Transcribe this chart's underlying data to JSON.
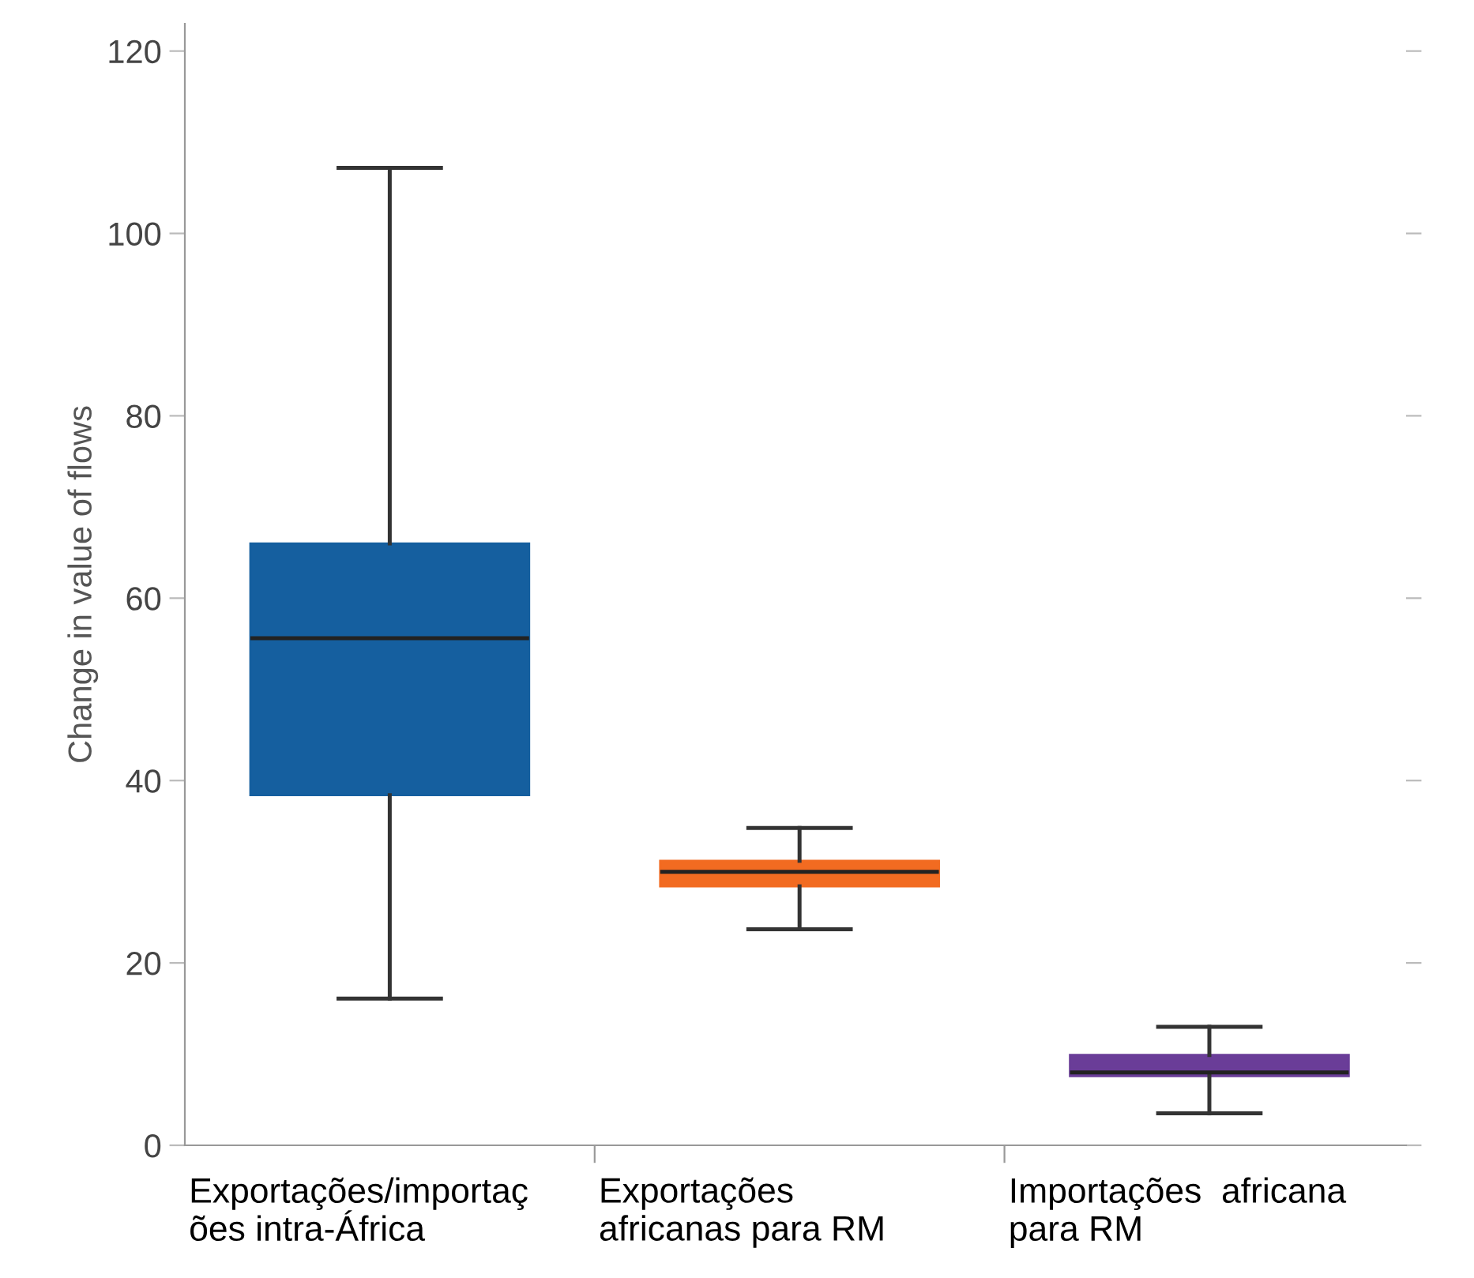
{
  "chart_data": {
    "type": "box",
    "ylabel": "Change in value of flows",
    "categories": [
      "Exportações/importaç\nões intra-África",
      "Exportações\nafricanas para RM",
      "Importações  africana\npara RM"
    ],
    "colors": [
      "#155f9f",
      "#f26b21",
      "#6a3d98"
    ],
    "boxes": [
      {
        "low": 16.1,
        "q1": 38.4,
        "median": 55.6,
        "q3": 66.0,
        "high": 107.2
      },
      {
        "low": 23.7,
        "q1": 28.4,
        "median": 30.0,
        "q3": 31.2,
        "high": 34.8
      },
      {
        "low": 3.5,
        "q1": 7.6,
        "median": 8.0,
        "q3": 9.9,
        "high": 13.0
      }
    ],
    "ylim": [
      0,
      123
    ],
    "yticks": [
      0,
      20,
      40,
      60,
      80,
      100,
      120
    ],
    "grid": false
  }
}
